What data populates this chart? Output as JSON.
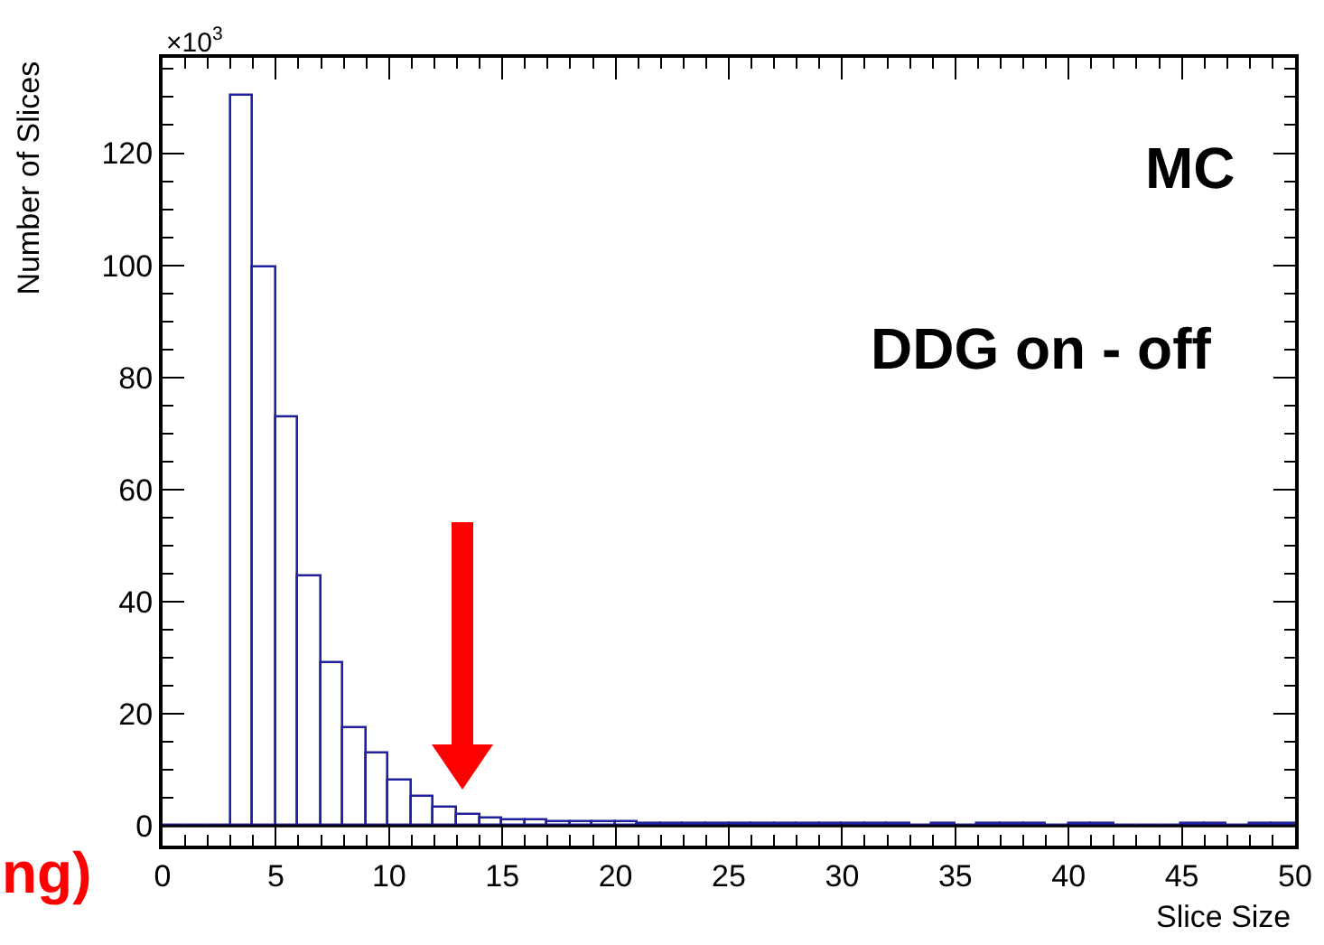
{
  "chart_data": {
    "type": "histogram",
    "xlabel": "Slice Size",
    "ylabel": "Number of Slices",
    "bins": [
      0,
      1,
      2,
      3,
      4,
      5,
      6,
      7,
      8,
      9,
      10,
      11,
      12,
      13,
      14,
      15,
      16,
      17,
      18,
      19,
      20,
      21,
      22,
      23,
      24,
      25,
      26,
      27,
      28,
      29,
      30,
      31,
      32,
      33,
      34,
      35,
      36,
      37,
      38,
      39,
      40,
      41,
      42,
      43,
      44,
      45,
      46,
      47,
      48,
      49,
      50
    ],
    "values": [
      0,
      0,
      0,
      130.3,
      99.5,
      72.9,
      44.6,
      29.2,
      17.5,
      12.9,
      8.1,
      5.1,
      3.2,
      1.9,
      1.4,
      1.1,
      1.1,
      0.7,
      0.7,
      0.7,
      0.7,
      0.3,
      0.3,
      0.3,
      0.3,
      0.3,
      0.3,
      0.3,
      0.3,
      0.3,
      0.3,
      0.3,
      0.3,
      0,
      0.3,
      0,
      0.3,
      0.3,
      0.3,
      0,
      0.3,
      0.3,
      0,
      0,
      0,
      0.3,
      0.3,
      0,
      0.3,
      0.3
    ],
    "color": "#2020a0",
    "xlim": [
      0,
      50
    ],
    "xticks": [
      0,
      5,
      10,
      15,
      20,
      25,
      30,
      35,
      40,
      45,
      50
    ],
    "ylim": [
      -3.5,
      137
    ],
    "yticks": [
      0,
      20,
      40,
      60,
      80,
      100,
      120
    ],
    "grid": false,
    "ref_lines": [
      {
        "axis": "y",
        "value": 0
      }
    ],
    "annotations": [
      "×10$^{3}$",
      "MC",
      "DDG on - off",
      "ng)"
    ]
  }
}
